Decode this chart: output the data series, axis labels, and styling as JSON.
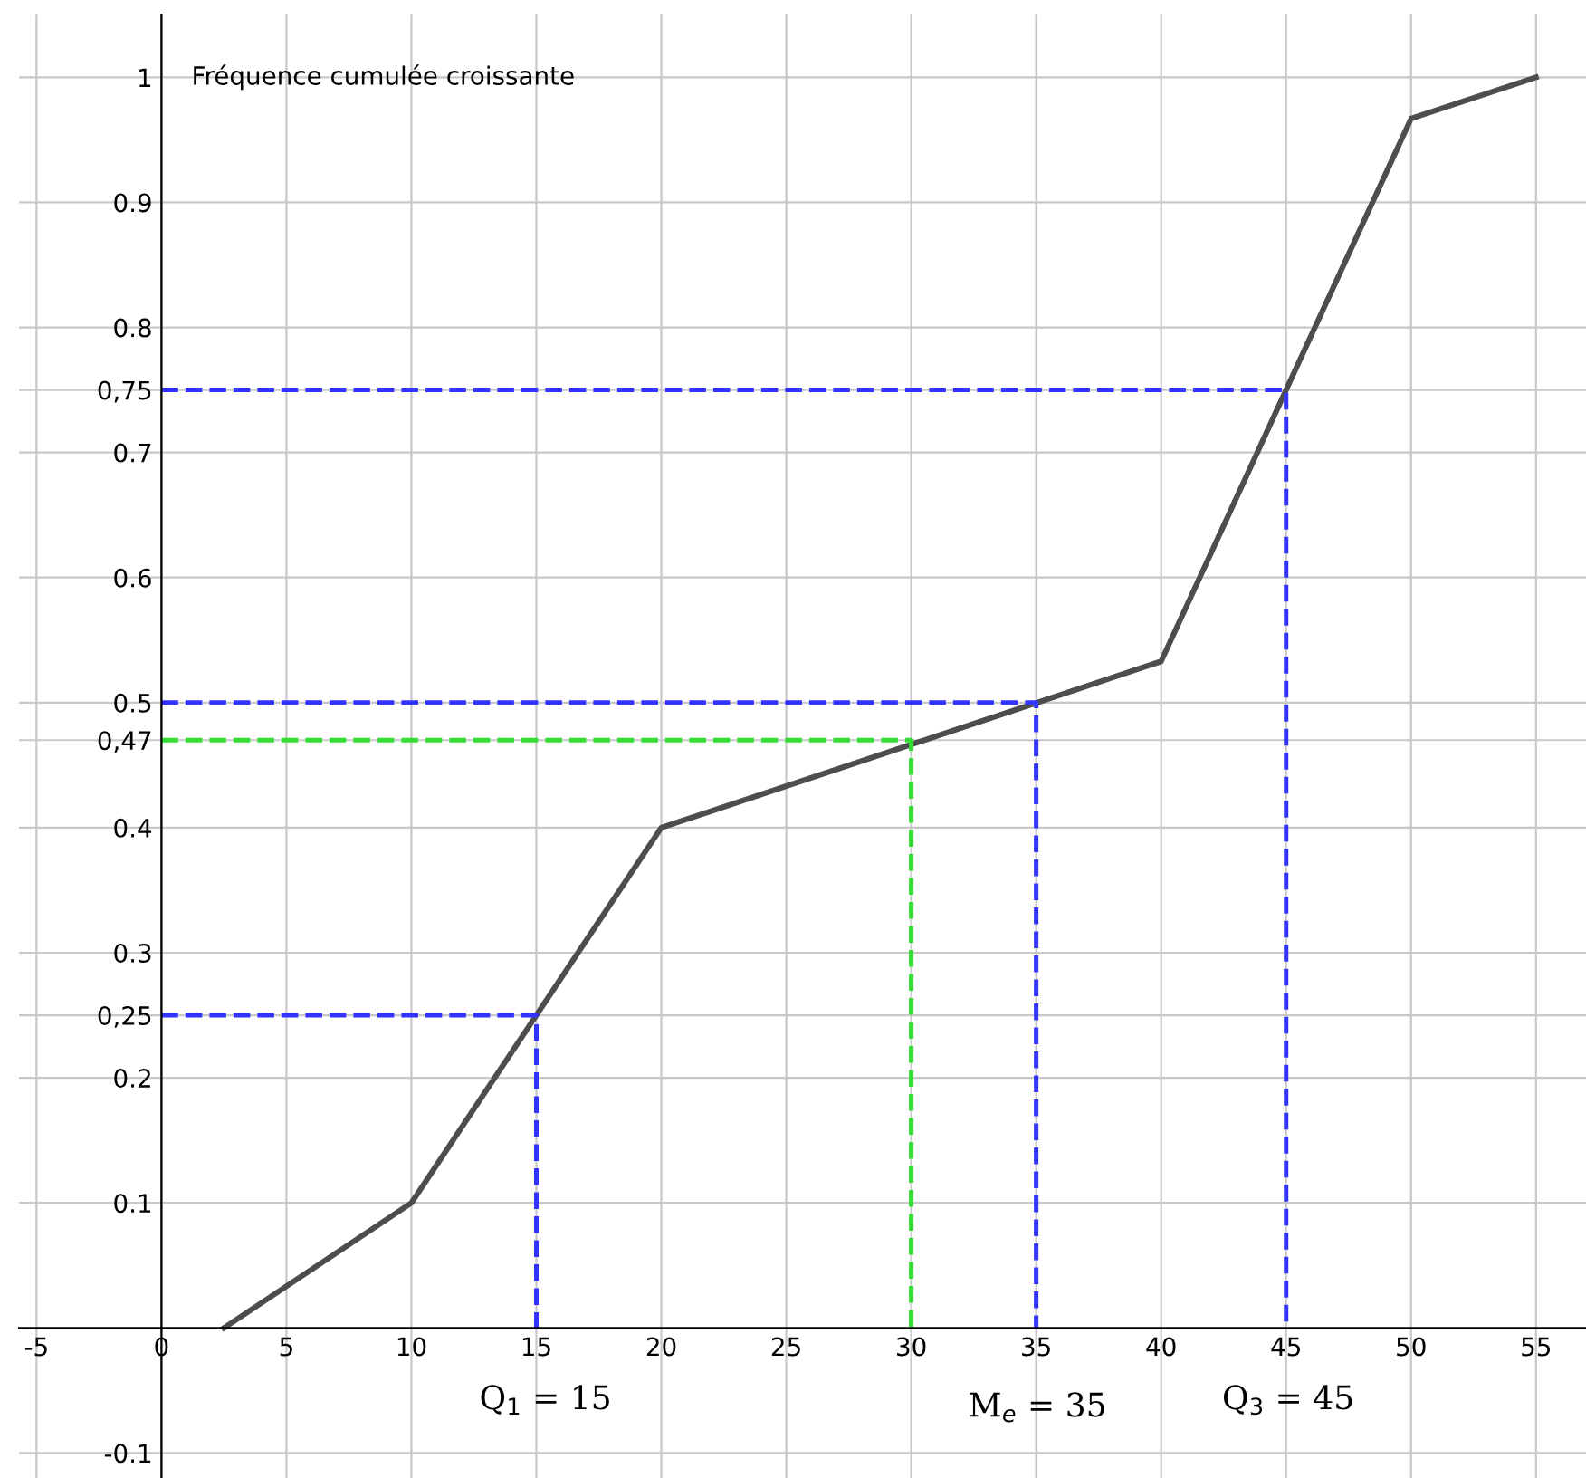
{
  "chart_data": {
    "type": "line",
    "ylabel": "Fréquence cumulée croissante",
    "xlim": [
      -5.7,
      57
    ],
    "ylim": [
      -0.12,
      1.05
    ],
    "xticks": [
      -5,
      0,
      5,
      10,
      15,
      20,
      25,
      30,
      35,
      40,
      45,
      50,
      55
    ],
    "yticks": [
      -0.1,
      0.1,
      0.2,
      {
        "value": 0.25,
        "label": "0,25"
      },
      0.3,
      0.4,
      {
        "value": 0.47,
        "label": "0,47"
      },
      0.5,
      0.6,
      0.7,
      {
        "value": 0.75,
        "label": "0,75"
      },
      0.8,
      0.9,
      1
    ],
    "grid": true,
    "line_style": "solid",
    "marker": "none",
    "series": [
      {
        "color": "#4d4d4d",
        "x": [
          2.5,
          10,
          20,
          40,
          50,
          55
        ],
        "values": [
          0,
          0.1,
          0.4,
          0.533,
          0.967,
          1
        ]
      },
      {
        "color": "#3333ff",
        "line_style": "dashed",
        "x": [
          0,
          15,
          15
        ],
        "values": [
          0.25,
          0.25,
          0
        ]
      },
      {
        "color": "#3333ff",
        "line_style": "dashed",
        "x": [
          0,
          35,
          35
        ],
        "values": [
          0.5,
          0.5,
          0
        ]
      },
      {
        "color": "#3333ff",
        "line_style": "dashed",
        "x": [
          0,
          45,
          45
        ],
        "values": [
          0.75,
          0.75,
          0
        ]
      },
      {
        "color": "#33dd33",
        "line_style": "dashed",
        "x": [
          0,
          30,
          30
        ],
        "values": [
          0.47,
          0.47,
          0
        ]
      }
    ],
    "annotations": [
      "Q$_{1}$ = 15",
      "M$_{e}$ = 35",
      "Q$_{3}$ = 45"
    ]
  }
}
